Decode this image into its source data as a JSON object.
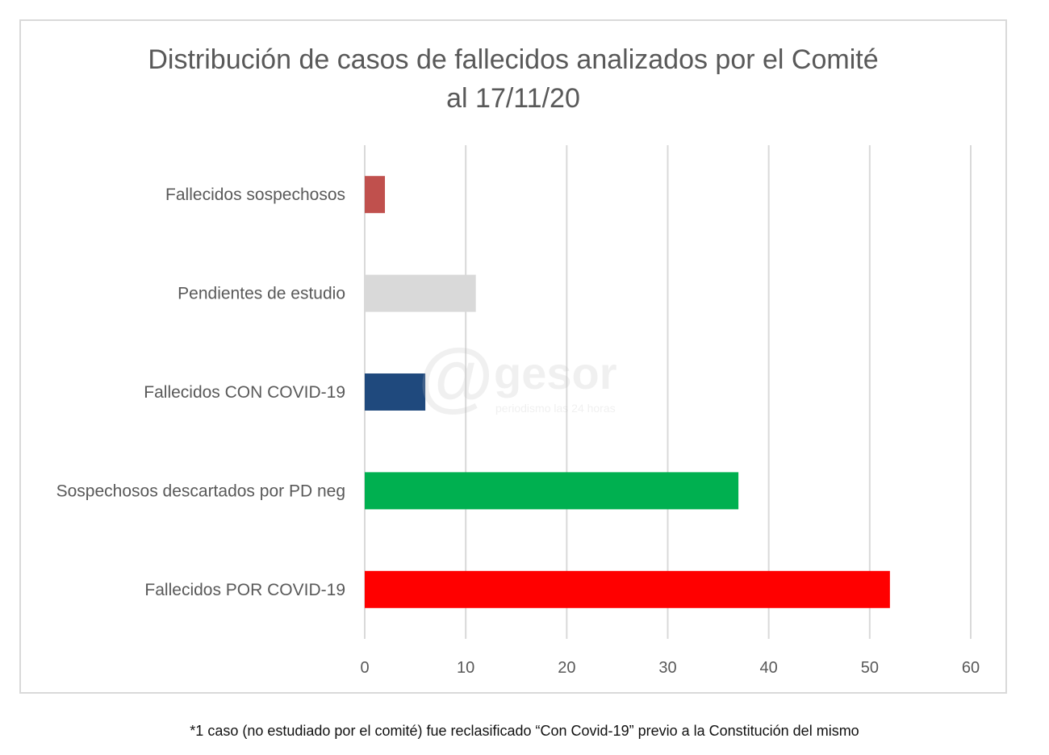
{
  "chart_data": {
    "type": "bar",
    "orientation": "horizontal",
    "title": "Distribución de casos de fallecidos analizados por el Comité\nal 17/11/20",
    "categories": [
      "Fallecidos sospechosos",
      "Pendientes de estudio",
      "Fallecidos CON COVID-19",
      "Sospechosos descartados por PD neg",
      "Fallecidos POR COVID-19"
    ],
    "values": [
      2,
      11,
      6,
      37,
      52
    ],
    "colors": [
      "#c0504d",
      "#d9d9d9",
      "#1f497d",
      "#00b050",
      "#ff0000"
    ],
    "xlim": [
      0,
      60
    ],
    "xticks": [
      0,
      10,
      20,
      30,
      40,
      50,
      60
    ],
    "grid": "vertical",
    "legend": "none",
    "footnote": "*1 caso (no estudiado por el comité) fue reclasificado “Con Covid-19”  previo a la Constitución del mismo",
    "grid_color": "#d9d9d9",
    "axis_text_color": "#595959"
  },
  "watermark": {
    "symbol": "@",
    "brand": "gesor",
    "tagline": "periodismo las 24 horas"
  }
}
